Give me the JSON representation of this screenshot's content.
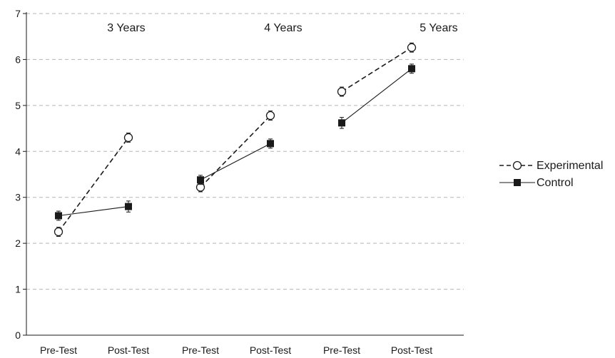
{
  "chart_data": {
    "type": "line",
    "title": "",
    "xlabel": "",
    "ylabel": "",
    "ylim": [
      0,
      7
    ],
    "yticks": [
      "0",
      "1",
      "2",
      "3",
      "4",
      "5",
      "6",
      "7"
    ],
    "grid": "horizontal dashed",
    "categories": [
      "Pre-Test",
      "Post-Test",
      "Pre-Test",
      "Post-Test",
      "Pre-Test",
      "Post-Test"
    ],
    "groups": [
      {
        "label": "3 Years",
        "categories": [
          0,
          1
        ]
      },
      {
        "label": "4 Years",
        "categories": [
          2,
          3
        ]
      },
      {
        "label": "5 Years",
        "categories": [
          4,
          5
        ]
      }
    ],
    "legend_position": "right",
    "series": [
      {
        "name": "Experimental",
        "style": "dashed",
        "marker": "open-circle",
        "color": "#1a1a1a",
        "values": [
          2.25,
          4.3,
          3.22,
          4.78,
          5.3,
          6.26
        ],
        "errors": [
          0.1,
          0.1,
          0.1,
          0.1,
          0.1,
          0.1
        ]
      },
      {
        "name": "Control",
        "style": "solid",
        "marker": "filled-square",
        "color": "#1a1a1a",
        "values": [
          2.6,
          2.8,
          3.38,
          4.17,
          4.62,
          5.8
        ],
        "errors": [
          0.1,
          0.12,
          0.1,
          0.1,
          0.12,
          0.1
        ]
      }
    ]
  }
}
